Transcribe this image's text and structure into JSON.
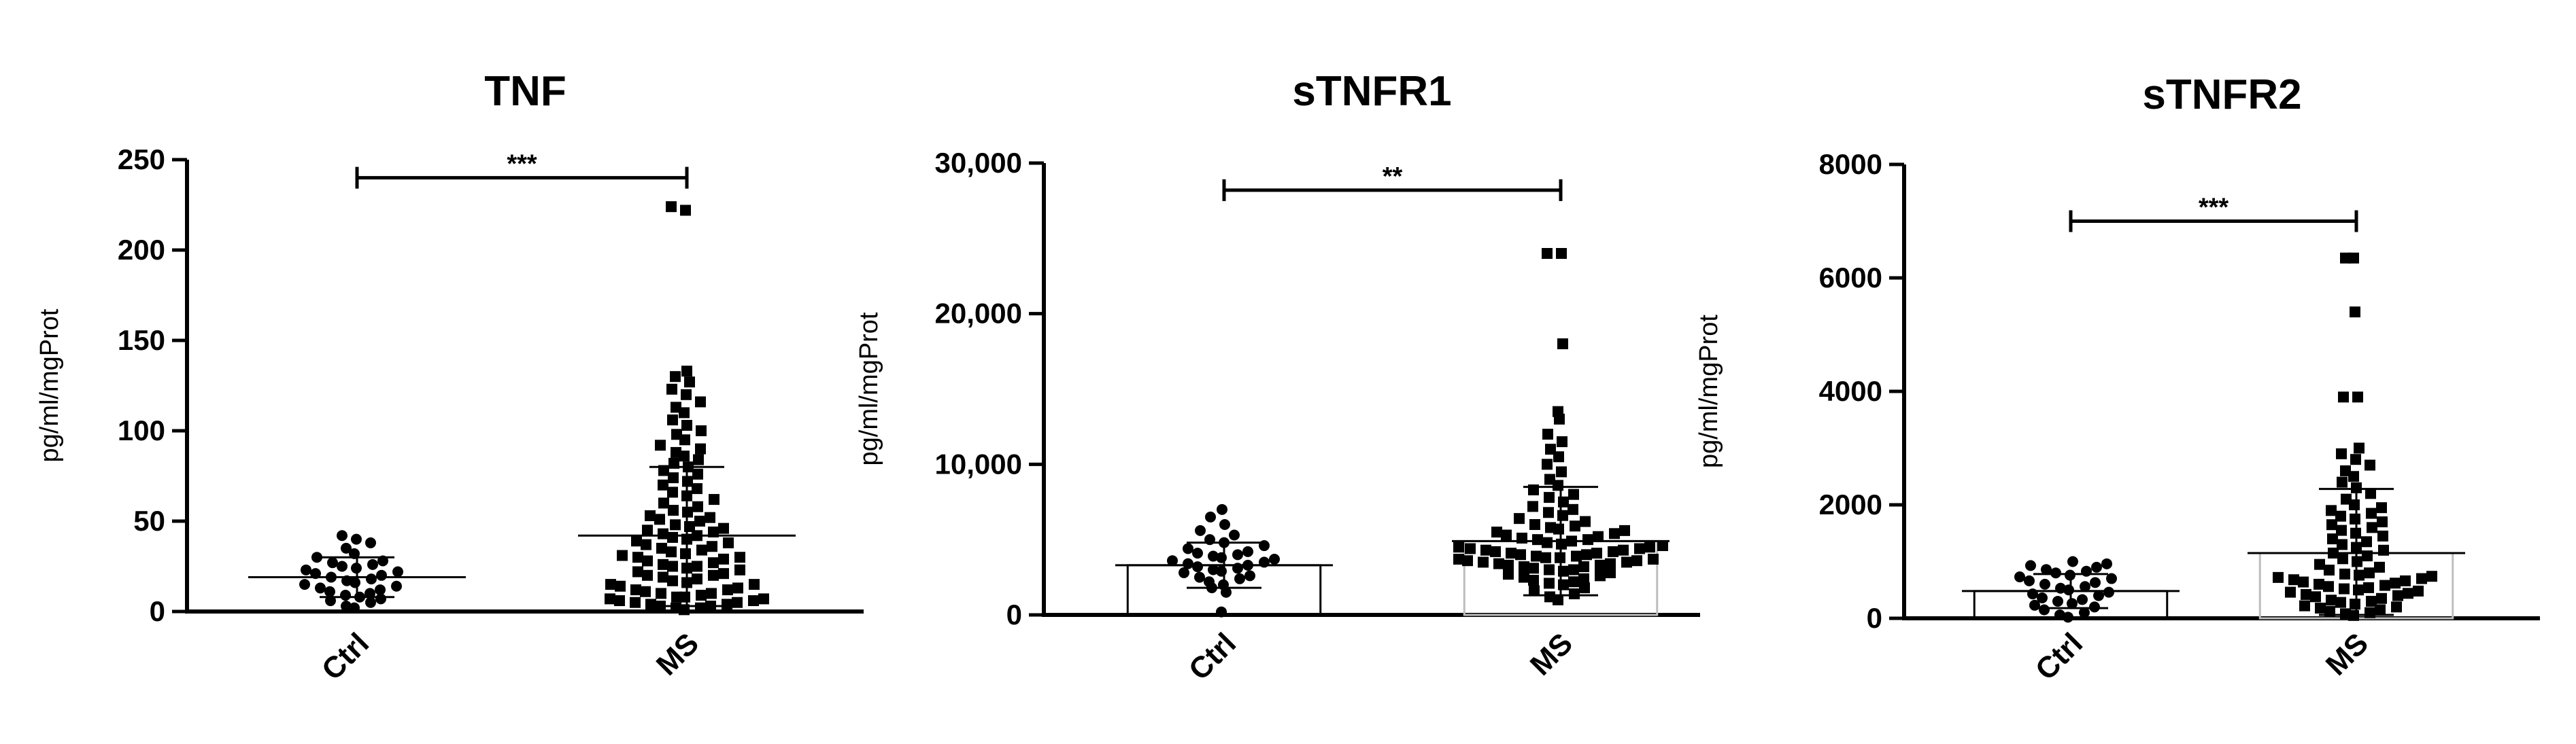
{
  "chart_data": [
    {
      "type": "scatter",
      "title": "TNF",
      "ylabel": "pg/ml/mgProt",
      "ylim": [
        0,
        250
      ],
      "yticks": [
        0,
        50,
        100,
        150,
        200,
        250
      ],
      "ytick_labels": [
        "0",
        "50",
        "100",
        "150",
        "200",
        "250"
      ],
      "categories": [
        "Ctrl",
        "MS"
      ],
      "bar_visible": false,
      "groups": [
        {
          "name": "Ctrl",
          "marker": "circle",
          "mean": 19,
          "sd_low": 8,
          "sd_high": 30,
          "values": [
            2,
            3,
            5,
            6,
            7,
            8,
            9,
            10,
            11,
            12,
            13,
            14,
            15,
            16,
            17,
            18,
            19,
            20,
            21,
            22,
            23,
            24,
            25,
            26,
            27,
            28,
            30,
            32,
            35,
            38,
            40,
            42
          ]
        },
        {
          "name": "MS",
          "marker": "square",
          "mean": 42,
          "sd_low": 3,
          "sd_high": 80,
          "values": [
            1,
            2,
            2,
            3,
            3,
            4,
            4,
            5,
            5,
            6,
            6,
            7,
            7,
            8,
            8,
            9,
            10,
            10,
            11,
            12,
            12,
            13,
            14,
            15,
            15,
            16,
            17,
            18,
            19,
            20,
            20,
            21,
            22,
            23,
            24,
            25,
            25,
            26,
            27,
            28,
            29,
            30,
            30,
            31,
            32,
            33,
            34,
            35,
            36,
            37,
            38,
            39,
            40,
            41,
            42,
            43,
            44,
            45,
            46,
            47,
            48,
            50,
            51,
            52,
            53,
            55,
            56,
            58,
            60,
            62,
            64,
            66,
            68,
            70,
            72,
            74,
            76,
            78,
            80,
            82,
            84,
            86,
            88,
            90,
            92,
            95,
            98,
            100,
            103,
            106,
            110,
            113,
            116,
            120,
            123,
            127,
            130,
            133,
            222,
            224
          ]
        }
      ],
      "significance": {
        "label": "***",
        "from": "Ctrl",
        "to": "MS",
        "y": 240
      }
    },
    {
      "type": "scatter",
      "title": "sTNFR1",
      "ylabel": "pg/ml/mgProt",
      "ylim": [
        0,
        30000
      ],
      "yticks": [
        0,
        10000,
        20000,
        30000
      ],
      "ytick_labels": [
        "0",
        "10,000",
        "20,000",
        "30,000"
      ],
      "categories": [
        "Ctrl",
        "MS"
      ],
      "bar_visible": true,
      "groups": [
        {
          "name": "Ctrl",
          "marker": "circle",
          "mean": 3300,
          "sd_low": 1800,
          "sd_high": 4800,
          "values": [
            200,
            1500,
            1800,
            2000,
            2200,
            2400,
            2500,
            2600,
            2800,
            2900,
            3000,
            3100,
            3200,
            3300,
            3400,
            3500,
            3600,
            3700,
            3800,
            3900,
            4000,
            4100,
            4200,
            4400,
            4600,
            4800,
            5000,
            5300,
            5600,
            6000,
            6500,
            7000
          ]
        },
        {
          "name": "MS",
          "marker": "square",
          "mean": 4900,
          "sd_low": 1300,
          "sd_high": 8500,
          "values": [
            1000,
            1200,
            1400,
            1600,
            1800,
            2000,
            2100,
            2200,
            2300,
            2400,
            2500,
            2600,
            2700,
            2800,
            2900,
            3000,
            3000,
            3100,
            3200,
            3200,
            3300,
            3300,
            3400,
            3400,
            3500,
            3500,
            3600,
            3600,
            3700,
            3700,
            3800,
            3800,
            3900,
            3900,
            4000,
            4000,
            4100,
            4100,
            4200,
            4200,
            4300,
            4300,
            4400,
            4400,
            4500,
            4500,
            4600,
            4700,
            4800,
            4900,
            5000,
            5000,
            5100,
            5200,
            5300,
            5400,
            5500,
            5600,
            5700,
            5800,
            5900,
            6000,
            6200,
            6400,
            6600,
            6800,
            7000,
            7200,
            7500,
            7800,
            8000,
            8300,
            8600,
            9000,
            9500,
            10000,
            10500,
            11000,
            11500,
            12000,
            13000,
            13500,
            18000,
            24000,
            24000
          ]
        }
      ],
      "significance": {
        "label": "**",
        "from": "Ctrl",
        "to": "MS",
        "y": 28200
      }
    },
    {
      "type": "scatter",
      "title": "sTNFR2",
      "ylabel": "pg/ml/mgProt",
      "ylim": [
        0,
        8000
      ],
      "yticks": [
        0,
        2000,
        4000,
        6000,
        8000
      ],
      "ytick_labels": [
        "0",
        "2000",
        "4000",
        "6000",
        "8000"
      ],
      "categories": [
        "Ctrl",
        "MS"
      ],
      "bar_visible": true,
      "groups": [
        {
          "name": "Ctrl",
          "marker": "circle",
          "mean": 480,
          "sd_low": 180,
          "sd_high": 780,
          "values": [
            20,
            60,
            100,
            150,
            200,
            230,
            260,
            300,
            330,
            360,
            400,
            430,
            460,
            500,
            530,
            560,
            600,
            630,
            660,
            700,
            730,
            760,
            800,
            830,
            860,
            900,
            930,
            960,
            1000
          ]
        },
        {
          "name": "MS",
          "marker": "square",
          "mean": 1150,
          "sd_low": 60,
          "sd_high": 2280,
          "values": [
            50,
            80,
            100,
            120,
            150,
            180,
            200,
            220,
            250,
            280,
            300,
            320,
            350,
            380,
            400,
            420,
            440,
            460,
            480,
            500,
            520,
            540,
            560,
            580,
            600,
            620,
            640,
            660,
            680,
            700,
            720,
            740,
            760,
            780,
            800,
            850,
            900,
            950,
            1000,
            1050,
            1100,
            1150,
            1200,
            1250,
            1300,
            1350,
            1400,
            1450,
            1500,
            1550,
            1600,
            1650,
            1700,
            1750,
            1800,
            1850,
            1900,
            1950,
            2000,
            2100,
            2200,
            2300,
            2400,
            2500,
            2600,
            2700,
            2800,
            2900,
            3000,
            3900,
            3900,
            5400,
            6350,
            6350
          ]
        }
      ],
      "significance": {
        "label": "***",
        "from": "Ctrl",
        "to": "MS",
        "y": 7000
      }
    }
  ]
}
